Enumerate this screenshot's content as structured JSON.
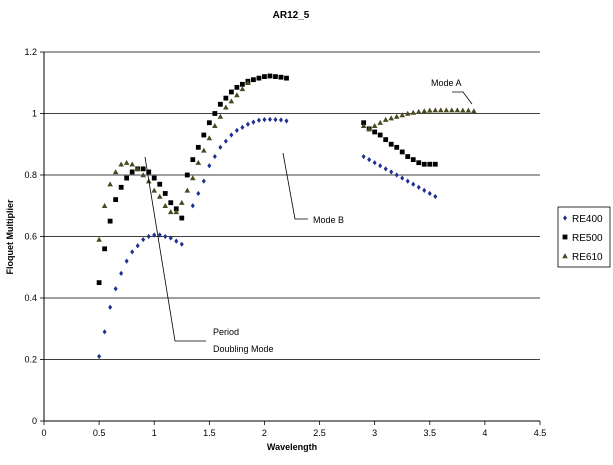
{
  "chart_data": {
    "type": "scatter",
    "title": "AR12_5",
    "xlabel": "Wavelength",
    "ylabel": "Floquet Multiplier",
    "xlim": [
      0,
      4.5
    ],
    "ylim": [
      0,
      1.2
    ],
    "xticks": [
      "0",
      "0.5",
      "1",
      "1.5",
      "2",
      "2.5",
      "3",
      "3.5",
      "4",
      "4.5"
    ],
    "yticks": [
      "0",
      "0.2",
      "0.4",
      "0.6",
      "0.8",
      "1",
      "1.2"
    ],
    "grid": "horizontal",
    "legend_position": "right",
    "series": [
      {
        "name": "RE400",
        "color": "#1f2f8f",
        "marker": "diamond",
        "x": [
          0.5,
          0.55,
          0.6,
          0.65,
          0.7,
          0.75,
          0.8,
          0.85,
          0.9,
          0.95,
          1.0,
          1.05,
          1.1,
          1.15,
          1.2,
          1.25,
          1.35,
          1.4,
          1.45,
          1.5,
          1.55,
          1.6,
          1.65,
          1.7,
          1.75,
          1.8,
          1.85,
          1.9,
          1.95,
          2.0,
          2.05,
          2.1,
          2.15,
          2.2,
          2.9,
          2.95,
          3.0,
          3.05,
          3.1,
          3.15,
          3.2,
          3.25,
          3.3,
          3.35,
          3.4,
          3.45,
          3.5,
          3.55
        ],
        "y": [
          0.21,
          0.29,
          0.37,
          0.43,
          0.48,
          0.52,
          0.55,
          0.57,
          0.59,
          0.6,
          0.605,
          0.605,
          0.6,
          0.595,
          0.585,
          0.575,
          0.7,
          0.74,
          0.78,
          0.83,
          0.86,
          0.89,
          0.91,
          0.93,
          0.945,
          0.955,
          0.965,
          0.972,
          0.978,
          0.98,
          0.981,
          0.98,
          0.979,
          0.976,
          0.86,
          0.85,
          0.84,
          0.83,
          0.82,
          0.81,
          0.8,
          0.79,
          0.78,
          0.77,
          0.76,
          0.75,
          0.74,
          0.73
        ]
      },
      {
        "name": "RE500",
        "color": "#000000",
        "marker": "square",
        "x": [
          0.5,
          0.55,
          0.6,
          0.65,
          0.7,
          0.75,
          0.8,
          0.85,
          0.9,
          0.95,
          1.0,
          1.05,
          1.1,
          1.15,
          1.2,
          1.25,
          1.3,
          1.35,
          1.4,
          1.45,
          1.5,
          1.55,
          1.6,
          1.65,
          1.7,
          1.75,
          1.8,
          1.85,
          1.9,
          1.95,
          2.0,
          2.05,
          2.1,
          2.15,
          2.2,
          2.9,
          2.95,
          3.0,
          3.05,
          3.1,
          3.15,
          3.2,
          3.25,
          3.3,
          3.35,
          3.4,
          3.45,
          3.5,
          3.55
        ],
        "y": [
          0.45,
          0.56,
          0.65,
          0.72,
          0.76,
          0.79,
          0.81,
          0.82,
          0.82,
          0.81,
          0.79,
          0.77,
          0.74,
          0.71,
          0.69,
          0.66,
          0.8,
          0.85,
          0.89,
          0.93,
          0.97,
          1.0,
          1.03,
          1.05,
          1.07,
          1.085,
          1.095,
          1.105,
          1.11,
          1.115,
          1.12,
          1.122,
          1.12,
          1.118,
          1.115,
          0.97,
          0.95,
          0.94,
          0.93,
          0.915,
          0.9,
          0.89,
          0.875,
          0.86,
          0.85,
          0.84,
          0.835,
          0.835,
          0.835
        ]
      },
      {
        "name": "RE610",
        "color": "#4a4a20",
        "marker": "triangle",
        "x": [
          0.5,
          0.55,
          0.6,
          0.65,
          0.7,
          0.75,
          0.8,
          0.85,
          0.9,
          0.95,
          1.0,
          1.05,
          1.1,
          1.15,
          1.2,
          1.25,
          1.3,
          1.35,
          1.4,
          1.45,
          1.5,
          1.55,
          1.6,
          1.65,
          1.7,
          1.75,
          1.8,
          1.85,
          2.9,
          2.95,
          3.0,
          3.05,
          3.1,
          3.15,
          3.2,
          3.25,
          3.3,
          3.35,
          3.4,
          3.45,
          3.5,
          3.55,
          3.6,
          3.65,
          3.7,
          3.75,
          3.8,
          3.85,
          3.9
        ],
        "y": [
          0.59,
          0.7,
          0.77,
          0.81,
          0.835,
          0.84,
          0.835,
          0.82,
          0.8,
          0.78,
          0.75,
          0.73,
          0.7,
          0.68,
          0.68,
          0.71,
          0.75,
          0.79,
          0.84,
          0.88,
          0.92,
          0.96,
          0.99,
          1.02,
          1.04,
          1.06,
          1.08,
          1.1,
          0.96,
          0.95,
          0.96,
          0.97,
          0.98,
          0.985,
          0.99,
          0.995,
          1.0,
          1.003,
          1.006,
          1.008,
          1.01,
          1.011,
          1.011,
          1.011,
          1.011,
          1.011,
          1.01,
          1.01,
          1.008
        ]
      }
    ],
    "annotations": [
      {
        "text": "Mode A"
      },
      {
        "text": "Mode B"
      },
      {
        "text": "Period"
      },
      {
        "text": "Doubling Mode"
      }
    ]
  }
}
